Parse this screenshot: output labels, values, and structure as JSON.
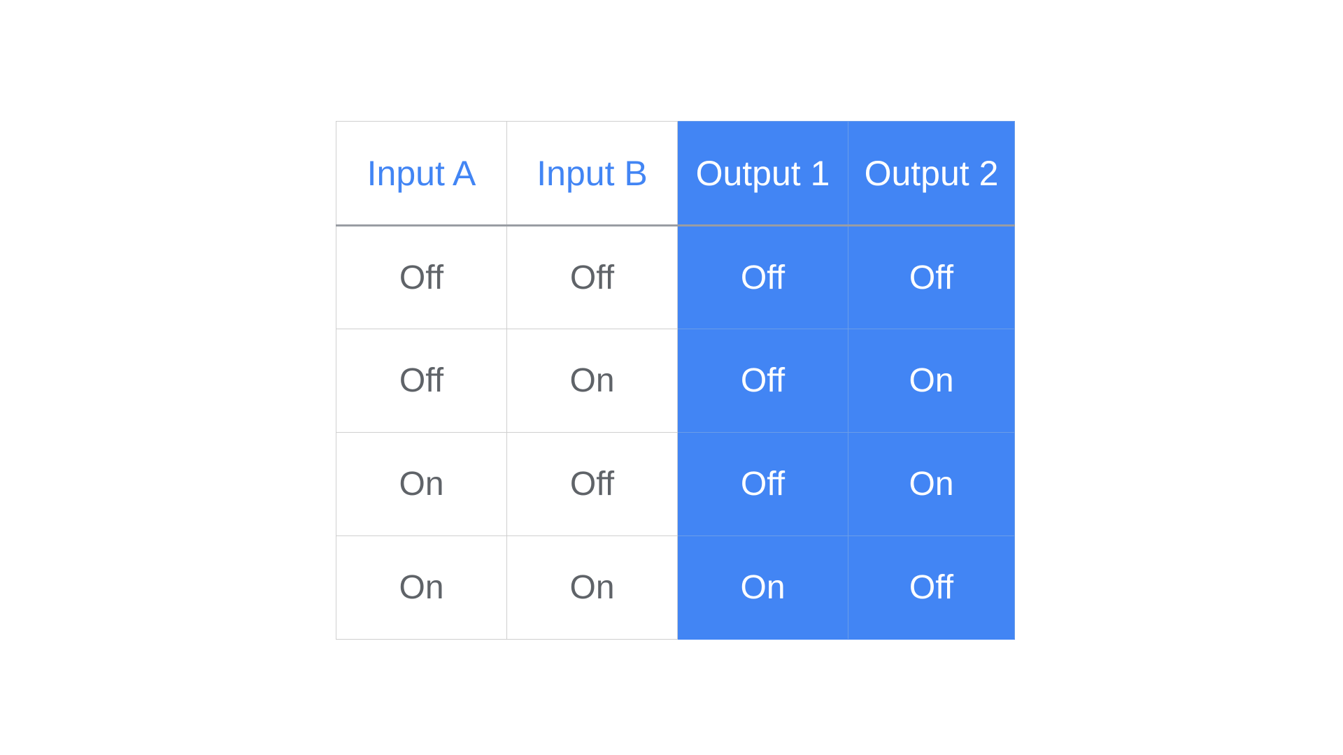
{
  "colors": {
    "accent": "#4285f4",
    "cell_text": "#5f6368",
    "output_text": "#ffffff",
    "grid": "#cfcfcf",
    "header_rule": "#999da3"
  },
  "table": {
    "headers": [
      "Input A",
      "Input B",
      "Output 1",
      "Output 2"
    ],
    "rows": [
      [
        "Off",
        "Off",
        "Off",
        "Off"
      ],
      [
        "Off",
        "On",
        "Off",
        "On"
      ],
      [
        "On",
        "Off",
        "Off",
        "On"
      ],
      [
        "On",
        "On",
        "On",
        "Off"
      ]
    ]
  }
}
